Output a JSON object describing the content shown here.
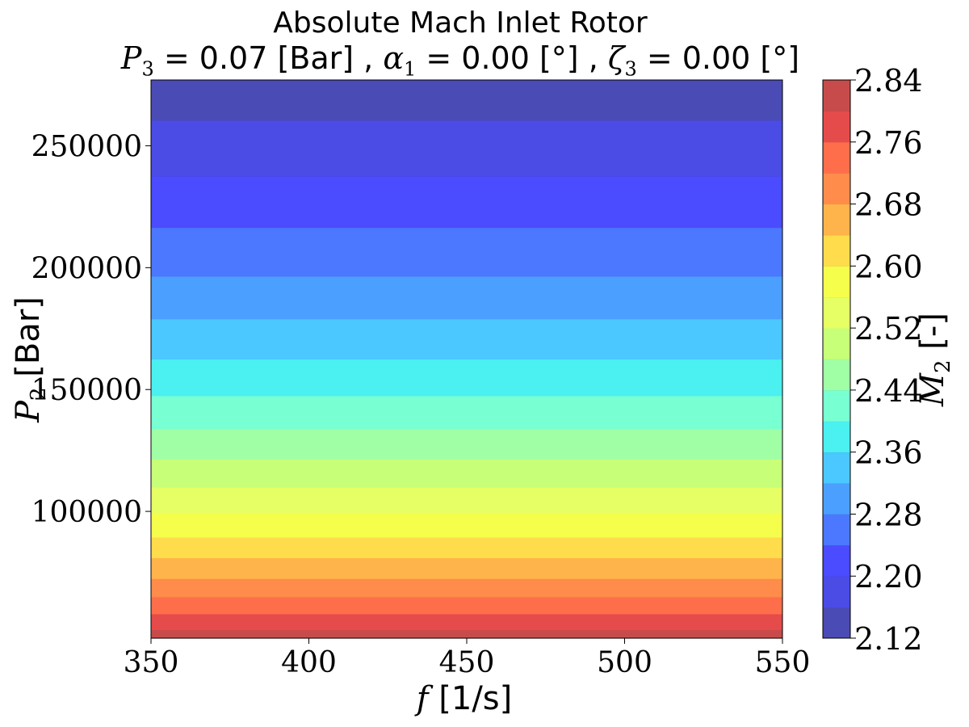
{
  "chart_data": {
    "type": "heatmap",
    "title": "Absolute Mach Inlet Rotor",
    "subtitle": {
      "p3_symbol": "P",
      "p3_sub": "3",
      "p3_text": " = 0.07 [Bar] , ",
      "alpha_symbol": "α",
      "alpha_sub": "1",
      "alpha_text": " = 0.00 [°] , ",
      "zeta_symbol": "ζ",
      "zeta_sub": "3",
      "zeta_text": " = 0.00 [°]"
    },
    "xlabel": {
      "symbol": "f",
      "text": " [1/s]"
    },
    "ylabel": {
      "symbol": "P",
      "sub": "2",
      "text": " [Bar]"
    },
    "colorbar_label": {
      "symbol": "M",
      "sub": "2",
      "text": " [-]"
    },
    "xlim": [
      350,
      550
    ],
    "ylim": [
      48000,
      277000
    ],
    "x_ticks": [
      "350",
      "400",
      "450",
      "500",
      "550"
    ],
    "x_tick_values": [
      350,
      400,
      450,
      500,
      550
    ],
    "y_ticks": [
      "100000",
      "150000",
      "200000",
      "250000"
    ],
    "y_tick_values": [
      100000,
      150000,
      200000,
      250000
    ],
    "colorbar_range": [
      2.12,
      2.84
    ],
    "colorbar_ticks": [
      "2.12",
      "2.20",
      "2.28",
      "2.36",
      "2.44",
      "2.52",
      "2.60",
      "2.68",
      "2.76",
      "2.84"
    ],
    "colorbar_tick_values": [
      2.12,
      2.2,
      2.28,
      2.36,
      2.44,
      2.52,
      2.6,
      2.68,
      2.76,
      2.84
    ],
    "levels": [
      2.12,
      2.16,
      2.2,
      2.24,
      2.28,
      2.32,
      2.36,
      2.4,
      2.44,
      2.48,
      2.52,
      2.56,
      2.6,
      2.64,
      2.68,
      2.72,
      2.76,
      2.8,
      2.84
    ],
    "level_colors": [
      "#4b4bb5",
      "#4b4be6",
      "#4b4bff",
      "#4b78ff",
      "#4ba0ff",
      "#4bc8ff",
      "#4bf0f0",
      "#78ffd2",
      "#a0ffa5",
      "#c8ff78",
      "#e6ff64",
      "#f5ff4b",
      "#ffdc4b",
      "#ffb44b",
      "#ff8c4b",
      "#ff6e4b",
      "#e64b4b",
      "#c84b4b"
    ],
    "contour_bands": [
      {
        "y_from": 48000,
        "y_to": 51500,
        "value": 2.82
      },
      {
        "y_from": 51500,
        "y_to": 58000,
        "value": 2.78
      },
      {
        "y_from": 58000,
        "y_to": 65000,
        "value": 2.74
      },
      {
        "y_from": 65000,
        "y_to": 72500,
        "value": 2.7
      },
      {
        "y_from": 72500,
        "y_to": 81000,
        "value": 2.66
      },
      {
        "y_from": 81000,
        "y_to": 89500,
        "value": 2.62
      },
      {
        "y_from": 89500,
        "y_to": 99500,
        "value": 2.58
      },
      {
        "y_from": 99500,
        "y_to": 110000,
        "value": 2.54
      },
      {
        "y_from": 110000,
        "y_to": 121500,
        "value": 2.5
      },
      {
        "y_from": 121500,
        "y_to": 134000,
        "value": 2.46
      },
      {
        "y_from": 134000,
        "y_to": 147500,
        "value": 2.42
      },
      {
        "y_from": 147500,
        "y_to": 162500,
        "value": 2.38
      },
      {
        "y_from": 162500,
        "y_to": 179000,
        "value": 2.34
      },
      {
        "y_from": 179000,
        "y_to": 196500,
        "value": 2.3
      },
      {
        "y_from": 196500,
        "y_to": 216500,
        "value": 2.26
      },
      {
        "y_from": 216500,
        "y_to": 237500,
        "value": 2.22
      },
      {
        "y_from": 237500,
        "y_to": 260500,
        "value": 2.18
      },
      {
        "y_from": 260500,
        "y_to": 277000,
        "value": 2.14
      }
    ]
  }
}
